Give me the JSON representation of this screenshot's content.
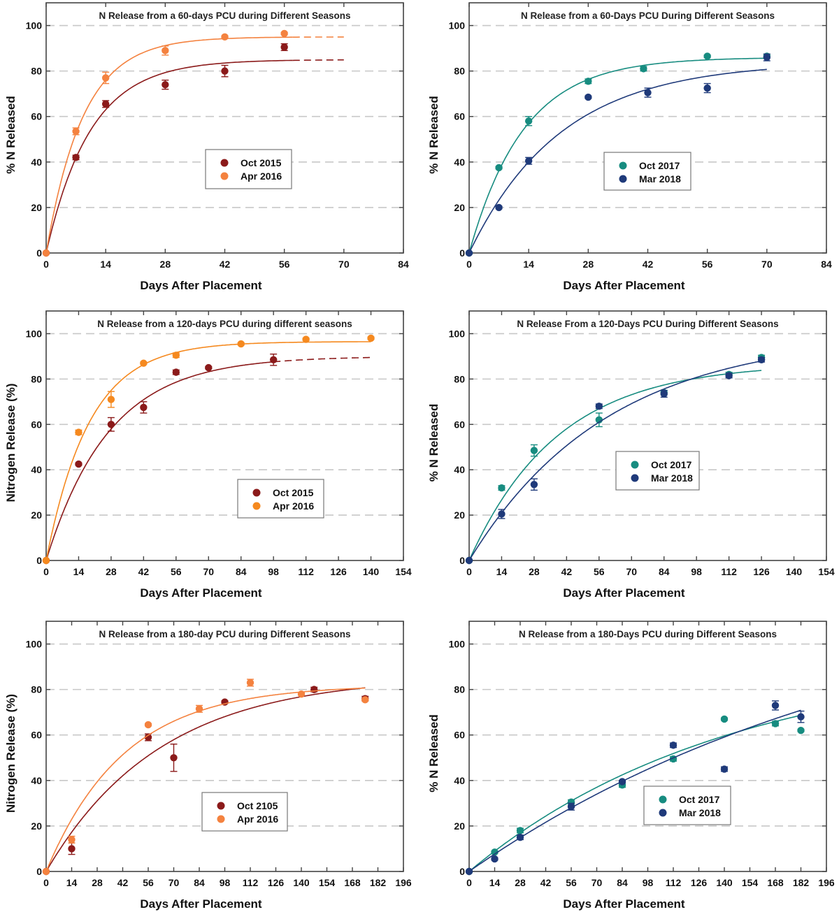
{
  "chart_data": [
    {
      "type": "scatter",
      "title": "N Release from a 60-days PCU during Different Seasons",
      "xlabel": "Days After Placement",
      "ylabel": "% N Released",
      "xlim": [
        0,
        84
      ],
      "ylim": [
        0,
        110
      ],
      "xticks": [
        0,
        14,
        28,
        42,
        56,
        70,
        84
      ],
      "yticks": [
        0,
        20,
        40,
        60,
        80,
        100
      ],
      "grid": "horizontal-dashed",
      "legend": "center-right",
      "series": [
        {
          "name": "Oct 2015",
          "color": "#8b1a1a",
          "x": [
            0,
            7,
            14,
            28,
            42,
            56
          ],
          "y": [
            0,
            42,
            65.5,
            74,
            80,
            90.5
          ],
          "err": [
            0,
            1,
            1.5,
            2,
            2.5,
            1.5
          ],
          "fit": {
            "model": "A*(1-exp(-k*x))",
            "A": 85,
            "k": 0.0965,
            "solid_to": 58,
            "dashed_to": 70
          }
        },
        {
          "name": "Apr 2016",
          "color": "#f4823f",
          "x": [
            0,
            7,
            14,
            28,
            42,
            56
          ],
          "y": [
            0,
            53.5,
            77,
            89,
            95,
            96.5
          ],
          "err": [
            0,
            1.5,
            2.5,
            2,
            0.5,
            0.5
          ],
          "fit": {
            "model": "A*(1-exp(-k*x))",
            "A": 95,
            "k": 0.115,
            "solid_to": 58,
            "dashed_to": 70
          }
        }
      ]
    },
    {
      "type": "scatter",
      "title": "N Release from a 60-Days PCU During Different Seasons",
      "xlabel": "Days After Placement",
      "ylabel": "% N Released",
      "xlim": [
        0,
        84
      ],
      "ylim": [
        0,
        110
      ],
      "xticks": [
        0,
        14,
        28,
        42,
        56,
        70,
        84
      ],
      "yticks": [
        0,
        20,
        40,
        60,
        80,
        100
      ],
      "grid": "horizontal-dashed",
      "legend": "center-right",
      "series": [
        {
          "name": "Oct 2017",
          "color": "#178c80",
          "x": [
            0,
            7,
            14,
            28,
            41,
            56,
            70
          ],
          "y": [
            0,
            37.5,
            58,
            75.5,
            81,
            86.5,
            86.5
          ],
          "err": [
            0,
            0.5,
            2,
            1,
            1,
            0.5,
            0.5
          ],
          "fit": {
            "model": "A*(1-exp(-k*x))",
            "A": 86,
            "k": 0.078,
            "solid_to": 70,
            "dashed_to": 70
          }
        },
        {
          "name": "Mar 2018",
          "color": "#1f3a7a",
          "x": [
            0,
            7,
            14,
            28,
            42,
            56,
            70
          ],
          "y": [
            0,
            20,
            40.5,
            68.5,
            70.5,
            72.5,
            86
          ],
          "err": [
            0,
            0.5,
            1.5,
            0.5,
            2,
            2,
            1.5
          ],
          "fit": {
            "model": "A*(1-exp(-k*x))",
            "A": 84,
            "k": 0.0463,
            "solid_to": 70,
            "dashed_to": 70
          }
        }
      ]
    },
    {
      "type": "scatter",
      "title": "N Release from a 120-days PCU during different seasons",
      "xlabel": "Days After Placement",
      "ylabel": "Nitrogen Release (%)",
      "xlim": [
        0,
        154
      ],
      "ylim": [
        0,
        110
      ],
      "xticks": [
        0,
        14,
        28,
        42,
        56,
        70,
        84,
        98,
        112,
        126,
        140,
        154
      ],
      "yticks": [
        0,
        20,
        40,
        60,
        80,
        100
      ],
      "grid": "horizontal-dashed",
      "legend": "center-right",
      "series": [
        {
          "name": "Oct 2015",
          "color": "#8b1a1a",
          "x": [
            0,
            14,
            28,
            42,
            56,
            70,
            98
          ],
          "y": [
            0,
            42.5,
            60,
            67.5,
            83,
            85,
            88.5
          ],
          "err": [
            0,
            0.5,
            3,
            2.5,
            1,
            0.5,
            2.5
          ],
          "fit": {
            "model": "A*(1-exp(-k*x))",
            "A": 90,
            "k": 0.0369,
            "solid_to": 98,
            "dashed_to": 140
          }
        },
        {
          "name": "Apr 2016",
          "color": "#f5891f",
          "x": [
            0,
            14,
            28,
            42,
            56,
            84,
            112,
            140
          ],
          "y": [
            0,
            56.5,
            71,
            87,
            90.5,
            95.5,
            97.5,
            98
          ],
          "err": [
            0,
            1,
            3.5,
            0.5,
            1,
            0.5,
            0.5,
            0.5
          ],
          "fit": {
            "model": "A*(1-exp(-k*x))",
            "A": 96.5,
            "k": 0.0536,
            "solid_to": 140,
            "dashed_to": 140
          }
        }
      ]
    },
    {
      "type": "scatter",
      "title": "N Release From a 120-Days PCU During Different Seasons",
      "xlabel": "Days After Placement",
      "ylabel": "% N Released",
      "xlim": [
        0,
        154
      ],
      "ylim": [
        0,
        110
      ],
      "xticks": [
        0,
        14,
        28,
        42,
        56,
        70,
        84,
        98,
        112,
        126,
        140,
        154
      ],
      "yticks": [
        0,
        20,
        40,
        60,
        80,
        100
      ],
      "grid": "horizontal-dashed",
      "legend": "center-right",
      "series": [
        {
          "name": "Oct 2017",
          "color": "#178c80",
          "x": [
            0,
            14,
            28,
            56,
            84,
            112,
            126
          ],
          "y": [
            0,
            32,
            48.5,
            62,
            74,
            82,
            89.5
          ],
          "err": [
            0,
            1,
            2.5,
            3,
            1,
            1,
            1
          ],
          "fit": {
            "model": "A*(1-exp(-k*x))",
            "A": 87,
            "k": 0.0262,
            "solid_to": 126,
            "dashed_to": 126
          }
        },
        {
          "name": "Mar 2018",
          "color": "#1f3a7a",
          "x": [
            0,
            14,
            28,
            56,
            84,
            112,
            126
          ],
          "y": [
            0,
            20.5,
            33.5,
            68,
            73.5,
            81.5,
            88.5
          ],
          "err": [
            0,
            2,
            2.5,
            1,
            1.5,
            1,
            1
          ],
          "fit": {
            "model": "A*(1-exp(-k*x))",
            "A": 100,
            "k": 0.0168,
            "solid_to": 126,
            "dashed_to": 126
          }
        }
      ]
    },
    {
      "type": "scatter",
      "title": "N Release from a 180-day PCU during Different Seasons",
      "xlabel": "Days After Placement",
      "ylabel": "Nitrogen Release (%)",
      "xlim": [
        0,
        196
      ],
      "ylim": [
        0,
        110
      ],
      "xticks": [
        0,
        14,
        28,
        42,
        56,
        70,
        84,
        98,
        112,
        126,
        140,
        154,
        168,
        182,
        196
      ],
      "yticks": [
        0,
        20,
        40,
        60,
        80,
        100
      ],
      "grid": "horizontal-dashed",
      "legend": "bottom-center",
      "series": [
        {
          "name": "Oct 2105",
          "color": "#8b1a1a",
          "x": [
            0,
            14,
            56,
            70,
            98,
            147,
            175
          ],
          "y": [
            0,
            10,
            59,
            50,
            74.5,
            80,
            76
          ],
          "err": [
            0,
            2.5,
            1.5,
            6,
            0.5,
            1,
            1
          ],
          "fit": {
            "model": "A*(1-exp(-k*x))",
            "A": 86,
            "k": 0.016,
            "solid_to": 175,
            "dashed_to": 175
          }
        },
        {
          "name": "Apr 2016",
          "color": "#f4823f",
          "x": [
            0,
            14,
            56,
            84,
            112,
            140,
            175
          ],
          "y": [
            0,
            14,
            64.5,
            71.5,
            83,
            78,
            75.5
          ],
          "err": [
            0,
            1.5,
            0.5,
            1.5,
            1.5,
            0.5,
            0.5
          ],
          "fit": {
            "model": "A*(1-exp(-k*x))",
            "A": 82,
            "k": 0.0234,
            "solid_to": 175,
            "dashed_to": 175
          }
        }
      ]
    },
    {
      "type": "scatter",
      "title": "N Release from a 180-Days PCU during Different Seasons",
      "xlabel": "Days After Placement",
      "ylabel": "% N Released",
      "xlim": [
        0,
        196
      ],
      "ylim": [
        0,
        110
      ],
      "xticks": [
        0,
        14,
        28,
        42,
        56,
        70,
        84,
        98,
        112,
        126,
        140,
        154,
        168,
        182,
        196
      ],
      "yticks": [
        0,
        20,
        40,
        60,
        80,
        100
      ],
      "grid": "horizontal-dashed",
      "legend": "bottom-center",
      "series": [
        {
          "name": "Oct 2017",
          "color": "#178c80",
          "x": [
            0,
            14,
            28,
            56,
            84,
            112,
            140,
            168,
            182
          ],
          "y": [
            0,
            8.5,
            18,
            30.5,
            38,
            49.5,
            67,
            65,
            62
          ],
          "err": [
            0,
            0.5,
            1,
            1,
            1,
            1,
            0.5,
            1,
            0.5
          ],
          "fit": {
            "model": "A*(1-exp(-k*x))",
            "A": 95,
            "k": 0.00705,
            "solid_to": 182,
            "dashed_to": 182
          }
        },
        {
          "name": "Mar 2018",
          "color": "#1f3a7a",
          "x": [
            0,
            14,
            28,
            56,
            84,
            112,
            140,
            168,
            182
          ],
          "y": [
            0,
            5.5,
            15,
            28.5,
            39.5,
            55.5,
            45,
            73,
            68
          ],
          "err": [
            0,
            0.5,
            1,
            1.5,
            0.5,
            1,
            1,
            2,
            2.5
          ],
          "fit": {
            "model": "A*(1-exp(-k*x))",
            "A": 130,
            "k": 0.00433,
            "solid_to": 182,
            "dashed_to": 182
          }
        }
      ]
    }
  ]
}
